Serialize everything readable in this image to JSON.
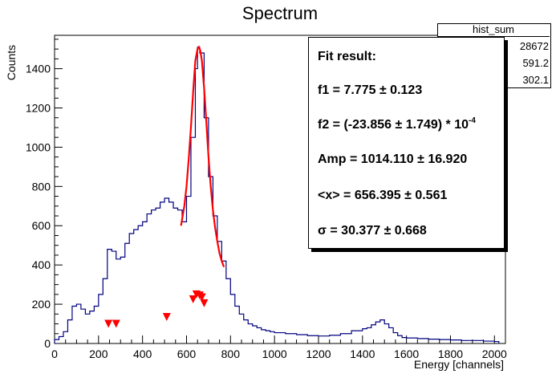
{
  "chart_data": {
    "type": "line",
    "title": "Spectrum",
    "xlabel": "Energy [channels]",
    "ylabel": "Counts",
    "xlim": [
      0,
      2050
    ],
    "ylim": [
      0,
      1570
    ],
    "xticks": [
      0,
      200,
      400,
      600,
      800,
      1000,
      1200,
      1400,
      1600,
      1800,
      2000
    ],
    "yticks": [
      0,
      200,
      400,
      600,
      800,
      1000,
      1200,
      1400
    ],
    "grid": false,
    "histogram": {
      "name": "hist_sum",
      "step": "true",
      "x": [
        0,
        20,
        40,
        60,
        80,
        100,
        120,
        140,
        160,
        180,
        200,
        220,
        240,
        260,
        280,
        300,
        320,
        340,
        360,
        380,
        400,
        420,
        440,
        460,
        480,
        500,
        520,
        540,
        560,
        580,
        600,
        620,
        640,
        650,
        660,
        680,
        700,
        720,
        740,
        760,
        780,
        800,
        820,
        840,
        860,
        880,
        900,
        920,
        940,
        960,
        980,
        1000,
        1050,
        1100,
        1150,
        1200,
        1250,
        1300,
        1350,
        1400,
        1420,
        1440,
        1460,
        1480,
        1500,
        1520,
        1540,
        1560,
        1580,
        1600,
        1650,
        1700,
        1750,
        1800,
        1850,
        1900,
        1950,
        2000
      ],
      "y": [
        20,
        35,
        60,
        120,
        190,
        200,
        175,
        150,
        165,
        190,
        250,
        330,
        480,
        470,
        430,
        440,
        510,
        560,
        580,
        600,
        620,
        660,
        680,
        690,
        720,
        740,
        720,
        690,
        680,
        620,
        750,
        1050,
        1400,
        1510,
        1480,
        1150,
        850,
        650,
        520,
        420,
        330,
        250,
        190,
        150,
        120,
        100,
        90,
        80,
        70,
        65,
        60,
        55,
        50,
        45,
        40,
        38,
        42,
        50,
        65,
        75,
        80,
        95,
        110,
        120,
        100,
        80,
        55,
        40,
        30,
        28,
        25,
        22,
        20,
        18,
        15,
        15,
        12,
        10
      ]
    },
    "fit": {
      "name": "fit",
      "x": [
        575,
        590,
        600,
        610,
        620,
        630,
        640,
        650,
        656,
        662,
        670,
        680,
        690,
        700,
        710,
        720,
        730,
        740,
        750,
        760,
        770
      ],
      "y": [
        600,
        700,
        800,
        940,
        1100,
        1280,
        1440,
        1500,
        1510,
        1495,
        1440,
        1300,
        1130,
        950,
        800,
        680,
        590,
        520,
        460,
        420,
        390
      ]
    },
    "markers": {
      "name": "peaks",
      "x": [
        245,
        280,
        510,
        630,
        645,
        660,
        670,
        680
      ],
      "y": [
        100,
        100,
        135,
        225,
        250,
        245,
        235,
        205
      ]
    },
    "stats": {
      "title": "hist_sum",
      "entries": "28672",
      "mean": "591.2",
      "stddev": "302.1"
    },
    "fit_result": {
      "title": "Fit result:",
      "f1_label": "f1 = 7.775 ± 0.123",
      "f2_label": "f2 = (-23.856 ± 1.749) * 10",
      "f2_exp": "-4",
      "amp_label": "Amp = 1014.110 ± 16.920",
      "x_label": "<x> = 656.395 ± 0.561",
      "sigma_label": "σ = 30.377 ± 0.668"
    },
    "colors": {
      "histogram": "#000080",
      "fit": "#ff0000",
      "markers": "#ff0000"
    }
  }
}
